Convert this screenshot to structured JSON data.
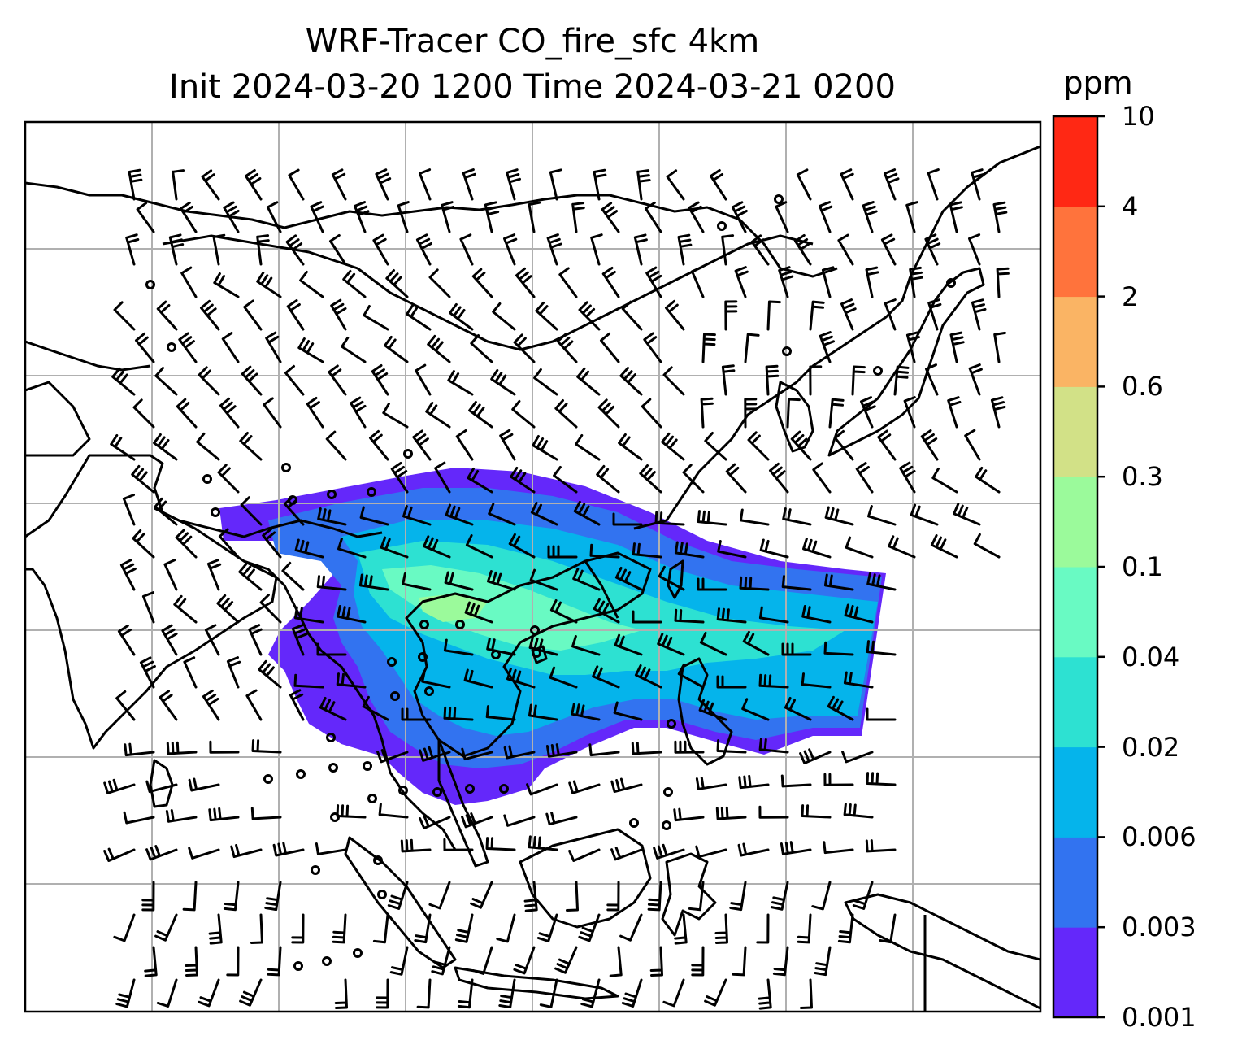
{
  "title": {
    "line1": "WRF-Tracer CO_fire_sfc 4km",
    "line2": "Init 2024-03-20 1200 Time 2024-03-21 0200"
  },
  "colorbar": {
    "unit": "ppm",
    "levels": [
      "0.001",
      "0.003",
      "0.006",
      "0.02",
      "0.04",
      "0.1",
      "0.3",
      "0.6",
      "2",
      "4",
      "10"
    ],
    "colors": [
      "#6428fa",
      "#3273f0",
      "#05b4eb",
      "#2de1d2",
      "#69fac3",
      "#9bfa9b",
      "#d2e187",
      "#fab464",
      "#ff733c",
      "#ff2814"
    ]
  },
  "map": {
    "gridline_color": "#b0b0b0",
    "coastline_color": "#000000",
    "field_name": "CO_fire_sfc",
    "barb_color": "#000000"
  }
}
